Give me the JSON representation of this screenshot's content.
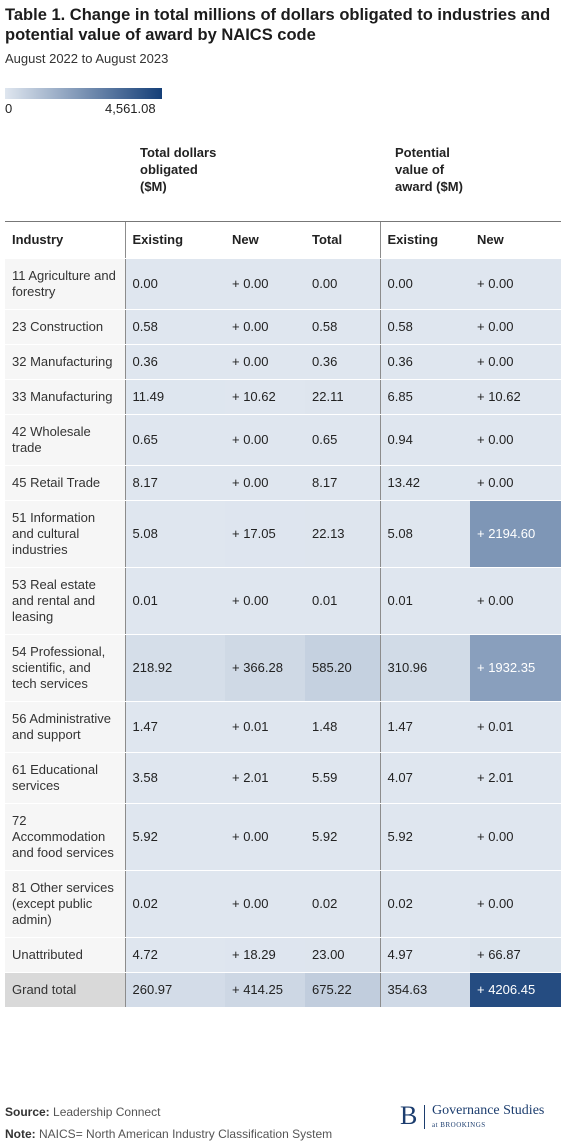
{
  "header": {
    "title": "Table 1. Change in total millions of dollars obligated to industries and potential value of award by NAICS code",
    "subtitle": "August 2022 to August 2023"
  },
  "scale": {
    "min": {
      "value": 0,
      "label": "0"
    },
    "max": {
      "value": 4561.08,
      "label": "4,561.08"
    },
    "colors": [
      "#dfe6ef",
      "#153f78"
    ]
  },
  "table": {
    "groups": [
      "Total dollars obligated ($M)",
      "Potential value of award ($M)"
    ],
    "columns": [
      "Industry",
      "Existing",
      "New",
      "Total",
      "Existing",
      "New"
    ],
    "rows": [
      [
        "11 Agriculture and forestry",
        "0.00",
        "+ 0.00",
        "0.00",
        "0.00",
        "+ 0.00"
      ],
      [
        "23 Construction",
        "0.58",
        "+ 0.00",
        "0.58",
        "0.58",
        "+ 0.00"
      ],
      [
        "32 Manufacturing",
        "0.36",
        "+ 0.00",
        "0.36",
        "0.36",
        "+ 0.00"
      ],
      [
        "33 Manufacturing",
        "11.49",
        "+ 10.62",
        "22.11",
        "6.85",
        "+ 10.62"
      ],
      [
        "42 Wholesale trade",
        "0.65",
        "+ 0.00",
        "0.65",
        "0.94",
        "+ 0.00"
      ],
      [
        "45 Retail Trade",
        "8.17",
        "+ 0.00",
        "8.17",
        "13.42",
        "+ 0.00"
      ],
      [
        "51 Information and cultural industries",
        "5.08",
        "+ 17.05",
        "22.13",
        "5.08",
        "+ 2194.60"
      ],
      [
        "53 Real estate and rental and leasing",
        "0.01",
        "+ 0.00",
        "0.01",
        "0.01",
        "+ 0.00"
      ],
      [
        "54 Professional, scientific, and tech services",
        "218.92",
        "+ 366.28",
        "585.20",
        "310.96",
        "+ 1932.35"
      ],
      [
        "56 Administrative and support",
        "1.47",
        "+ 0.01",
        "1.48",
        "1.47",
        "+ 0.01"
      ],
      [
        "61 Educational services",
        "3.58",
        "+ 2.01",
        "5.59",
        "4.07",
        "+ 2.01"
      ],
      [
        "72 Accommodation and food services",
        "5.92",
        "+ 0.00",
        "5.92",
        "5.92",
        "+ 0.00"
      ],
      [
        "81 Other services (except public admin)",
        "0.02",
        "+ 0.00",
        "0.02",
        "0.02",
        "+ 0.00"
      ],
      [
        "Unattributed",
        "4.72",
        "+ 18.29",
        "23.00",
        "4.97",
        "+ 66.87"
      ],
      [
        "Grand total",
        "260.97",
        "+ 414.25",
        "675.22",
        "354.63",
        "+ 4206.45"
      ]
    ]
  },
  "footer": {
    "source_label": "Source:",
    "source": "Leadership Connect",
    "note_label": "Note:",
    "note": "NAICS= North American Industry Classification System",
    "logo_mark": "B",
    "logo_title": "Governance Studies",
    "logo_sub": "at BROOKINGS"
  }
}
